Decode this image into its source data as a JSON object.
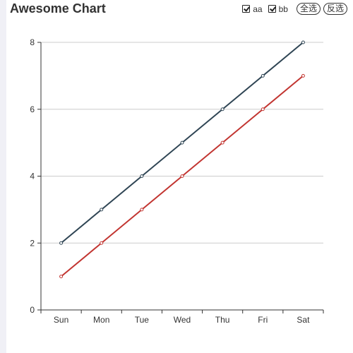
{
  "chart_data": {
    "type": "line",
    "title": "Awesome Chart",
    "categories": [
      "Sun",
      "Mon",
      "Tue",
      "Wed",
      "Thu",
      "Fri",
      "Sat"
    ],
    "series": [
      {
        "name": "aa",
        "values": [
          2,
          3,
          4,
          5,
          6,
          7,
          8
        ],
        "color": "#2f4554"
      },
      {
        "name": "bb",
        "values": [
          1,
          2,
          3,
          4,
          5,
          6,
          7
        ],
        "color": "#c23531"
      }
    ],
    "y_ticks": [
      "0",
      "2",
      "4",
      "6",
      "8"
    ],
    "ylim": [
      0,
      8
    ],
    "grid": true,
    "legend_position": "top-right"
  },
  "legend": {
    "select_all_label": "全选",
    "invert_label": "反选"
  }
}
